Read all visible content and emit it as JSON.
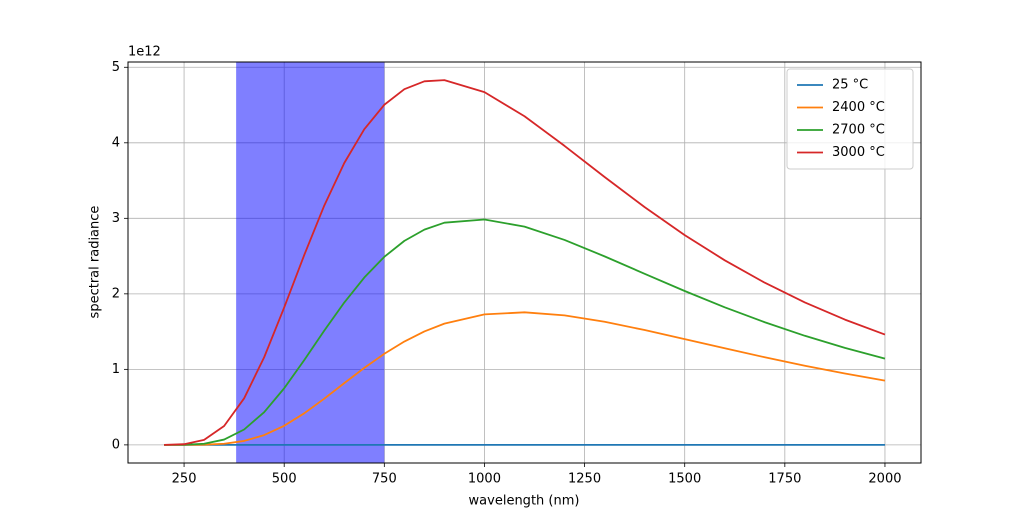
{
  "chart_data": {
    "type": "line",
    "x_label": "wavelength (nm)",
    "y_label": "spectral radiance",
    "y_offset_label": "1e12",
    "x": [
      200,
      250,
      300,
      350,
      400,
      450,
      500,
      550,
      600,
      650,
      700,
      750,
      800,
      850,
      900,
      1000,
      1100,
      1200,
      1300,
      1400,
      1500,
      1600,
      1700,
      1800,
      1900,
      2000
    ],
    "series": [
      {
        "name": "25 °C",
        "color": "#1f77b4",
        "values": [
          0,
          0,
          0,
          0,
          0,
          0,
          0,
          0,
          0,
          0,
          0,
          0,
          0,
          0,
          0,
          0,
          0,
          0,
          0,
          0,
          0,
          0,
          0,
          0,
          0,
          0
        ]
      },
      {
        "name": "2400 °C",
        "color": "#ff7f0e",
        "values": [
          0,
          0.0002,
          0.0025,
          0.0149,
          0.0523,
          0.1295,
          0.253,
          0.418,
          0.6116,
          0.8174,
          1.0196,
          1.2062,
          1.3684,
          1.5021,
          1.6059,
          1.728,
          1.7552,
          1.7146,
          1.6302,
          1.521,
          1.4009,
          1.2788,
          1.1601,
          1.0483,
          0.9449,
          0.8504
        ]
      },
      {
        "name": "2700 °C",
        "color": "#2ca02c",
        "values": [
          0,
          0.0015,
          0.0152,
          0.0704,
          0.2036,
          0.4331,
          0.7497,
          1.1223,
          1.5124,
          1.8853,
          2.2162,
          2.4902,
          2.7013,
          2.85,
          2.9424,
          2.9844,
          2.8898,
          2.7137,
          2.4963,
          2.2655,
          2.0375,
          1.8219,
          1.6236,
          1.4444,
          1.2841,
          1.1417
        ]
      },
      {
        "name": "3000 °C",
        "color": "#d62728",
        "values": [
          0.0003,
          0.0089,
          0.0666,
          0.2503,
          0.6164,
          1.1606,
          1.8204,
          2.514,
          3.1685,
          3.7325,
          4.18,
          4.504,
          4.71,
          4.814,
          4.83,
          4.671,
          4.352,
          3.959,
          3.547,
          3.148,
          2.778,
          2.444,
          2.147,
          1.8865,
          1.6588,
          1.4605
        ]
      }
    ],
    "span": {
      "start": 380,
      "end": 750,
      "color": "#0000ff",
      "opacity": 0.5
    },
    "xlim": [
      110,
      2090
    ],
    "ylim": [
      -0.24,
      5.07
    ],
    "xticks": [
      250,
      500,
      750,
      1000,
      1250,
      1500,
      1750,
      2000
    ],
    "yticks": [
      0,
      1,
      2,
      3,
      4,
      5
    ],
    "grid": true,
    "legend": "upper right"
  }
}
